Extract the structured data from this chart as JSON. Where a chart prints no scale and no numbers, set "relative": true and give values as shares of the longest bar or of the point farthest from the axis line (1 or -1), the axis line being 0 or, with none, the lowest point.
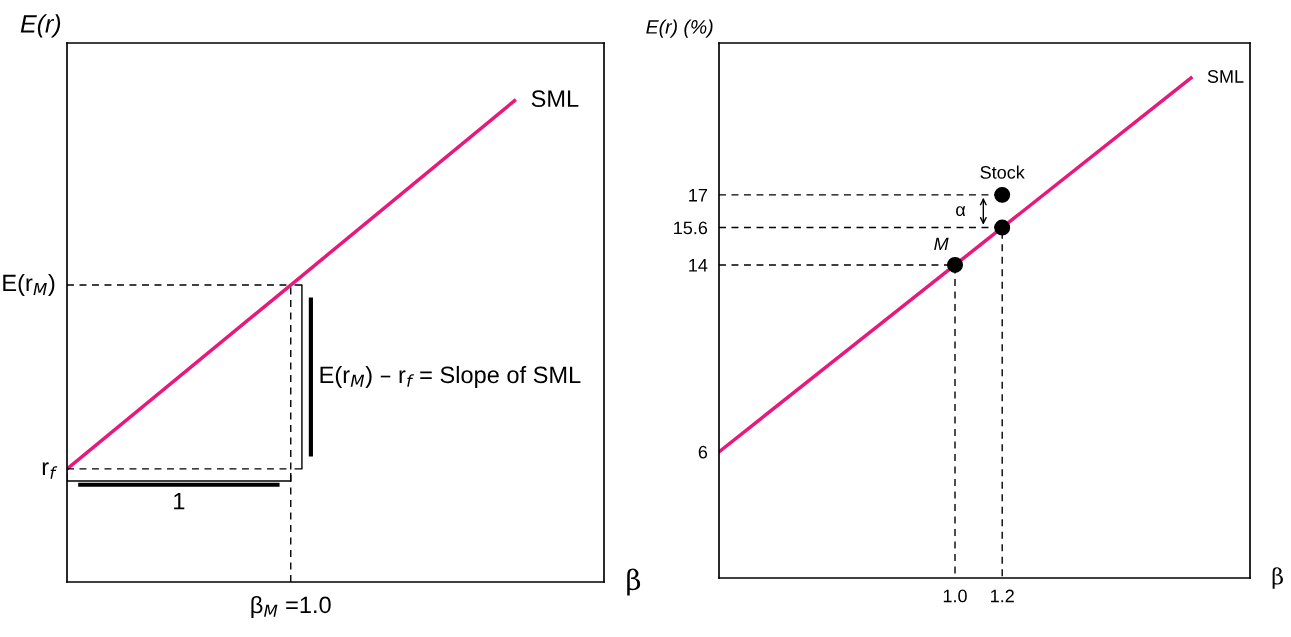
{
  "chart_data": [
    {
      "type": "line",
      "relative": true,
      "xlabel": "β",
      "ylabel": "E(r)",
      "categories": [
        null,
        null,
        null
      ],
      "series": [
        {
          "name": "SML",
          "color": "#e8197d",
          "values": [
            0.235,
            0.617,
            1.0
          ]
        },
        {
          "color": "#000000",
          "line_style": "dashed",
          "values": [
            0.617,
            0.617,
            null
          ]
        },
        {
          "color": "#000000",
          "line_style": "dashed",
          "values": [
            0.235,
            0.235,
            null
          ]
        }
      ],
      "annotations": [
        "E(r$_{M}$)",
        "r$_{f}$",
        "E(r$_{M}$) – r$_{f}$ = Slope of SML",
        "1",
        "β$_{M}$ =1.0"
      ]
    },
    {
      "type": "line",
      "xlabel": "β",
      "ylabel": "E(r) (%)",
      "xlim": [
        0,
        2.25
      ],
      "ylim": [
        0.6,
        23.5
      ],
      "xticks": [
        {
          "value": 1.0,
          "label": "1.0"
        },
        {
          "value": 1.2,
          "label": "1.2"
        }
      ],
      "yticks": [
        6,
        14,
        15.6,
        17
      ],
      "series": [
        {
          "name": "SML",
          "color": "#e8197d",
          "x": [
            0,
            2.0
          ],
          "values": [
            6,
            22
          ]
        },
        {
          "color": "#000000",
          "line_style": "dashed",
          "x": [
            0,
            1,
            1
          ],
          "values": [
            14,
            14,
            0.6
          ]
        },
        {
          "color": "#000000",
          "line_style": "dashed",
          "x": [
            0,
            1.2,
            1.2
          ],
          "values": [
            15.6,
            15.6,
            0.6
          ]
        },
        {
          "color": "#000000",
          "line_style": "dashed",
          "x": [
            0,
            1.2
          ],
          "values": [
            17,
            17
          ]
        },
        {
          "type": "scatter",
          "color": "#000000",
          "marker": "circle",
          "x": [
            1.0,
            1.2,
            1.2
          ],
          "values": [
            14,
            15.6,
            17
          ]
        }
      ],
      "annotations": [
        {
          "text": "M",
          "x": 1.0,
          "y": 14
        },
        {
          "text": "Stock",
          "x": 1.2,
          "y": 17
        },
        "α"
      ]
    }
  ]
}
